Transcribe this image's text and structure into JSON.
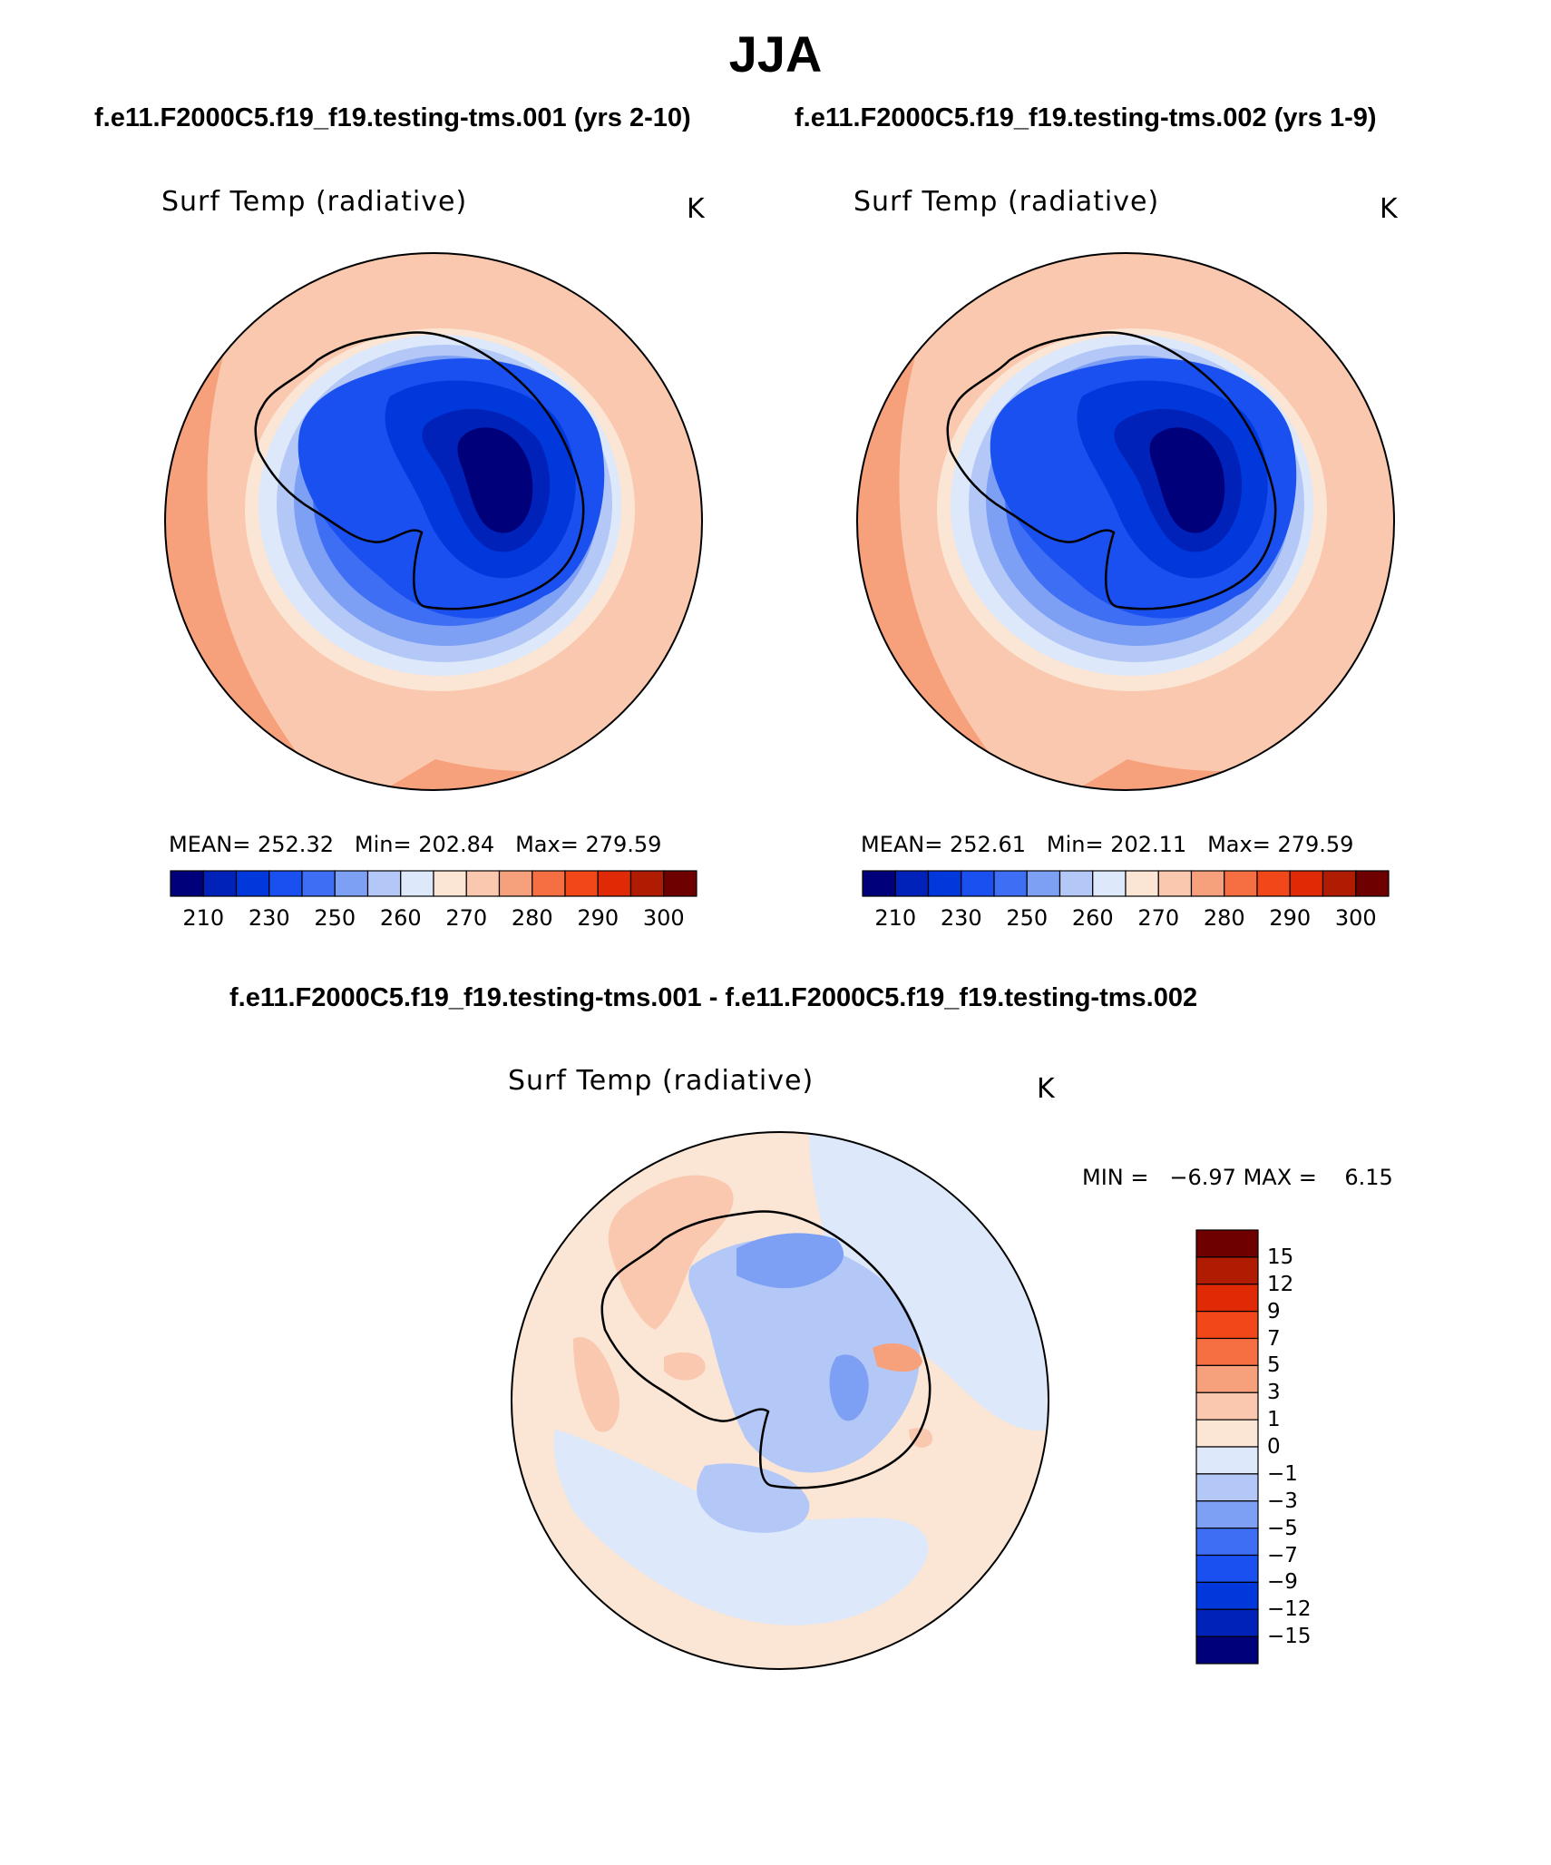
{
  "title": "JJA",
  "case_titles": {
    "left": "f.e11.F2000C5.f19_f19.testing-tms.001 (yrs 2-10)",
    "right": "f.e11.F2000C5.f19_f19.testing-tms.002 (yrs 1-9)",
    "diff": "f.e11.F2000C5.f19_f19.testing-tms.001 - f.e11.F2000C5.f19_f19.testing-tms.002"
  },
  "panels": {
    "left": {
      "variable": "Surf Temp (radiative)",
      "units": "K",
      "stats": {
        "mean_label": "MEAN=",
        "mean": "252.32",
        "min_label": "Min=",
        "min": "202.84",
        "max_label": "Max=",
        "max": "279.59"
      }
    },
    "right": {
      "variable": "Surf Temp (radiative)",
      "units": "K",
      "stats": {
        "mean_label": "MEAN=",
        "mean": "252.61",
        "min_label": "Min=",
        "min": "202.11",
        "max_label": "Max=",
        "max": "279.59"
      }
    },
    "diff": {
      "variable": "Surf Temp (radiative)",
      "units": "K",
      "stats": {
        "min_label": "MIN =",
        "min": "−6.97",
        "max_label": "MAX =",
        "max": "6.15"
      }
    }
  },
  "colorbars": {
    "abs": {
      "colors": [
        "#00007a",
        "#0022b8",
        "#0038dc",
        "#1a4ff0",
        "#3d6ef4",
        "#7ea0f4",
        "#b4c8f7",
        "#dde8fa",
        "#fbe5d4",
        "#fac8ae",
        "#f7a07c",
        "#f56f42",
        "#f24718",
        "#e02a05",
        "#b01c02",
        "#6e0000"
      ],
      "ticks": [
        "210",
        "230",
        "250",
        "260",
        "270",
        "280",
        "290",
        "300"
      ]
    },
    "diff": {
      "colors": [
        "#6e0000",
        "#b01c02",
        "#e02a05",
        "#f24718",
        "#f56f42",
        "#f7a07c",
        "#fac8ae",
        "#fbe5d4",
        "#dde8fa",
        "#b4c8f7",
        "#7ea0f4",
        "#3d6ef4",
        "#1a4ff0",
        "#0038dc",
        "#0022b8",
        "#00007a"
      ],
      "ticks": [
        "15",
        "12",
        "9",
        "7",
        "5",
        "3",
        "1",
        "0",
        "−1",
        "−3",
        "−5",
        "−7",
        "−9",
        "−12",
        "−15"
      ]
    }
  }
}
